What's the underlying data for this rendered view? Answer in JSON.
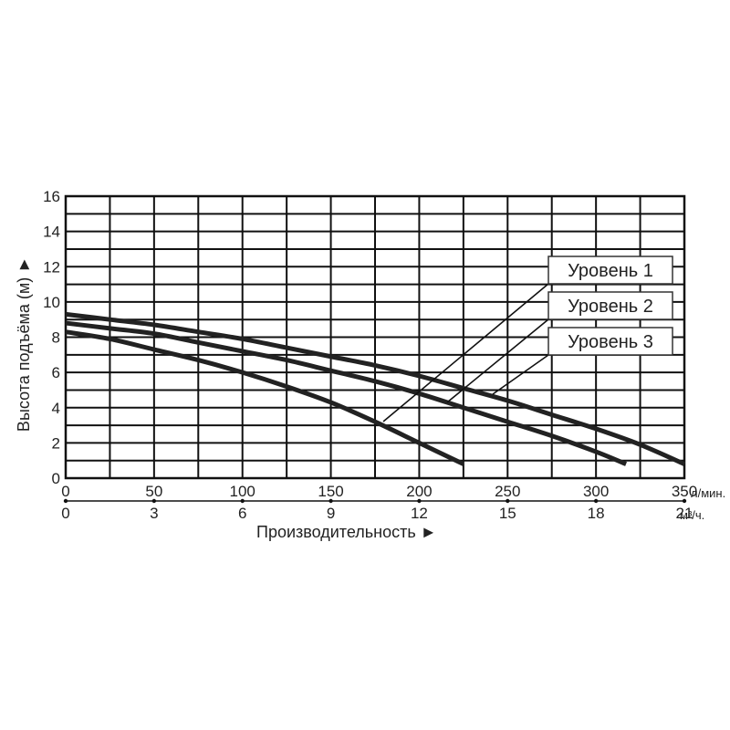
{
  "chart_data": {
    "type": "line",
    "title": "",
    "xlabel": "Производительность ►",
    "ylabel": "Высота подъёма (м) ►",
    "x_unit_primary": "л/мин.",
    "x_unit_secondary": "м³/ч.",
    "xlim": [
      0,
      350
    ],
    "ylim": [
      0,
      16
    ],
    "grid": true,
    "legend_position": "upper-right callout boxes",
    "x_ticks_primary": [
      0,
      50,
      100,
      150,
      200,
      250,
      300,
      350
    ],
    "x_ticks_secondary": [
      0,
      3,
      6,
      9,
      12,
      15,
      18,
      21
    ],
    "y_ticks": [
      0,
      2,
      4,
      6,
      8,
      10,
      12,
      14,
      16
    ],
    "x_grid_step": 25,
    "y_grid_step": 1,
    "series": [
      {
        "name": "Уровень 1",
        "x": [
          0,
          25,
          50,
          75,
          100,
          125,
          150,
          175,
          200,
          225,
          250,
          275,
          300,
          325,
          350
        ],
        "y": [
          9.3,
          9.0,
          8.7,
          8.3,
          7.9,
          7.4,
          6.9,
          6.4,
          5.8,
          5.1,
          4.4,
          3.6,
          2.8,
          1.9,
          0.8
        ]
      },
      {
        "name": "Уровень 2",
        "x": [
          0,
          25,
          50,
          75,
          100,
          125,
          150,
          175,
          200,
          225,
          250,
          275,
          300,
          317
        ],
        "y": [
          8.8,
          8.5,
          8.2,
          7.7,
          7.2,
          6.7,
          6.1,
          5.5,
          4.8,
          4.0,
          3.2,
          2.4,
          1.5,
          0.8
        ]
      },
      {
        "name": "Уровень 3",
        "x": [
          0,
          25,
          50,
          75,
          100,
          125,
          150,
          175,
          200,
          225
        ],
        "y": [
          8.3,
          7.9,
          7.3,
          6.7,
          6.0,
          5.2,
          4.3,
          3.2,
          2.0,
          0.8
        ]
      }
    ]
  },
  "axes": {
    "y_title": "Высота подъёма (м) ►",
    "x_title": "Производительность ►",
    "x_unit_primary": "л/мин.",
    "x_unit_secondary": "м³/ч."
  },
  "legend": [
    {
      "label": "Уровень 1"
    },
    {
      "label": "Уровень 2"
    },
    {
      "label": "Уровень 3"
    }
  ],
  "colors": {
    "line": "#222222",
    "grid": "#111111",
    "text": "#222222",
    "background": "#ffffff"
  }
}
